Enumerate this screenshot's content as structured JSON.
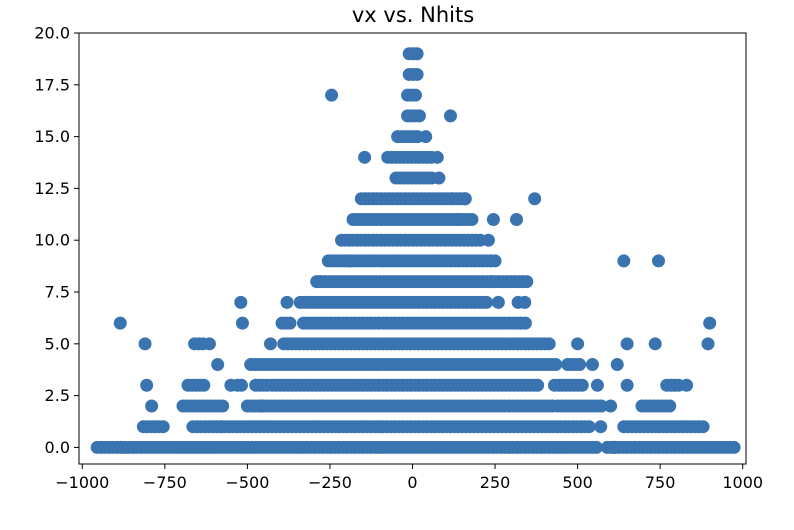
{
  "chart_data": {
    "type": "scatter",
    "title": "vx vs. Nhits",
    "xlabel": "",
    "ylabel": "",
    "xlim": [
      -1010,
      1010
    ],
    "ylim": [
      -0.8,
      20
    ],
    "grid": false,
    "legend": "none",
    "marker_color": "#3a74b0",
    "x_ticks": [
      -1000,
      -750,
      -500,
      -250,
      0,
      250,
      500,
      750,
      1000
    ],
    "x_tick_labels": [
      "−1000",
      "−750",
      "−500",
      "−250",
      "0",
      "250",
      "500",
      "750",
      "1000"
    ],
    "y_ticks": [
      0,
      2.5,
      5,
      7.5,
      10,
      12.5,
      15,
      17.5,
      20
    ],
    "y_tick_labels": [
      "0.0",
      "2.5",
      "5.0",
      "7.5",
      "10.0",
      "12.5",
      "15.0",
      "17.5",
      "20.0"
    ],
    "series": [
      {
        "bands": [
          {
            "y": 0,
            "x_from": -955,
            "x_to": 560
          },
          {
            "y": 0,
            "x_from": 590,
            "x_to": 975
          },
          {
            "y": 1,
            "x_from": -815,
            "x_to": -750
          },
          {
            "y": 1,
            "x_from": -665,
            "x_to": 545
          },
          {
            "y": 1,
            "x_from": 640,
            "x_to": 880
          },
          {
            "y": 2,
            "x_from": -695,
            "x_to": -570
          },
          {
            "y": 2,
            "x_from": -500,
            "x_to": 430
          },
          {
            "y": 2,
            "x_from": 440,
            "x_to": 580
          },
          {
            "y": 2,
            "x_from": 695,
            "x_to": 790
          },
          {
            "y": 3,
            "x_from": -680,
            "x_to": -630
          },
          {
            "y": 3,
            "x_from": -530,
            "x_to": -510
          },
          {
            "y": 3,
            "x_from": -475,
            "x_to": -440
          },
          {
            "y": 3,
            "x_from": -425,
            "x_to": 390
          },
          {
            "y": 3,
            "x_from": 430,
            "x_to": 520
          },
          {
            "y": 3,
            "x_from": 770,
            "x_to": 810
          },
          {
            "y": 4,
            "x_from": -490,
            "x_to": 440
          },
          {
            "y": 4,
            "x_from": 470,
            "x_to": 510
          },
          {
            "y": 5,
            "x_from": -660,
            "x_to": -645
          },
          {
            "y": 5,
            "x_from": -390,
            "x_to": 320
          },
          {
            "y": 5,
            "x_from": 330,
            "x_to": 415
          },
          {
            "y": 6,
            "x_from": -395,
            "x_to": -360
          },
          {
            "y": 6,
            "x_from": -330,
            "x_to": 345
          },
          {
            "y": 7,
            "x_from": -340,
            "x_to": 235
          },
          {
            "y": 8,
            "x_from": -290,
            "x_to": 350
          },
          {
            "y": 9,
            "x_from": -255,
            "x_to": 240
          },
          {
            "y": 10,
            "x_from": -215,
            "x_to": 215
          },
          {
            "y": 11,
            "x_from": -180,
            "x_to": 190
          },
          {
            "y": 12,
            "x_from": -155,
            "x_to": 160
          },
          {
            "y": 13,
            "x_from": -50,
            "x_to": 60
          },
          {
            "y": 14,
            "x_from": -75,
            "x_to": 65
          },
          {
            "y": 15,
            "x_from": -45,
            "x_to": 25
          },
          {
            "y": 16,
            "x_from": -15,
            "x_to": 25
          },
          {
            "y": 17,
            "x_from": -15,
            "x_to": 20
          },
          {
            "y": 18,
            "x_from": -10,
            "x_to": 15
          },
          {
            "y": 19,
            "x_from": -10,
            "x_to": 15
          }
        ],
        "points": [
          {
            "x": -885,
            "y": 6
          },
          {
            "x": -810,
            "y": 5
          },
          {
            "x": -805,
            "y": 3
          },
          {
            "x": -790,
            "y": 2
          },
          {
            "x": -520,
            "y": 7
          },
          {
            "x": -515,
            "y": 6
          },
          {
            "x": -590,
            "y": 4
          },
          {
            "x": -550,
            "y": 3
          },
          {
            "x": -615,
            "y": 5
          },
          {
            "x": -635,
            "y": 5
          },
          {
            "x": -440,
            "y": 3
          },
          {
            "x": -580,
            "y": 1
          },
          {
            "x": -245,
            "y": 17
          },
          {
            "x": 115,
            "y": 16
          },
          {
            "x": -145,
            "y": 14
          },
          {
            "x": 370,
            "y": 12
          },
          {
            "x": 160,
            "y": 12
          },
          {
            "x": 315,
            "y": 11
          },
          {
            "x": 245,
            "y": 11
          },
          {
            "x": 230,
            "y": 10
          },
          {
            "x": 250,
            "y": 9
          },
          {
            "x": 640,
            "y": 9
          },
          {
            "x": 745,
            "y": 9
          },
          {
            "x": 320,
            "y": 7
          },
          {
            "x": 340,
            "y": 7
          },
          {
            "x": 260,
            "y": 7
          },
          {
            "x": 900,
            "y": 6
          },
          {
            "x": 895,
            "y": 5
          },
          {
            "x": 735,
            "y": 5
          },
          {
            "x": 650,
            "y": 5
          },
          {
            "x": 500,
            "y": 5
          },
          {
            "x": 545,
            "y": 4
          },
          {
            "x": 620,
            "y": 4
          },
          {
            "x": 650,
            "y": 3
          },
          {
            "x": 560,
            "y": 3
          },
          {
            "x": 600,
            "y": 2
          },
          {
            "x": 830,
            "y": 3
          },
          {
            "x": 240,
            "y": 8
          },
          {
            "x": 120,
            "y": 12
          },
          {
            "x": 140,
            "y": 11
          },
          {
            "x": 180,
            "y": 10
          },
          {
            "x": -190,
            "y": 9
          },
          {
            "x": -380,
            "y": 7
          },
          {
            "x": -280,
            "y": 8
          },
          {
            "x": 80,
            "y": 13
          },
          {
            "x": 75,
            "y": 14
          },
          {
            "x": 40,
            "y": 15
          },
          {
            "x": -430,
            "y": 5
          },
          {
            "x": -460,
            "y": 2
          },
          {
            "x": 570,
            "y": 1
          },
          {
            "x": 610,
            "y": 0
          }
        ]
      }
    ]
  }
}
